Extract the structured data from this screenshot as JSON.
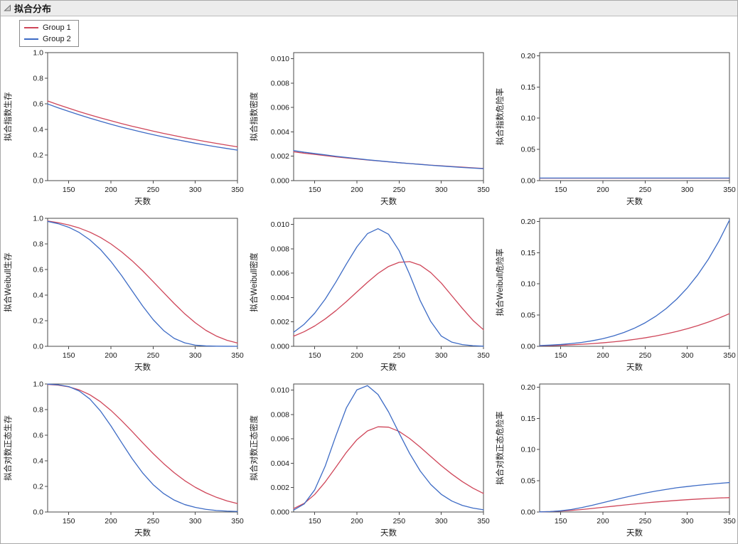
{
  "window": {
    "title": "拟合分布"
  },
  "legend": {
    "items": [
      {
        "label": "Group 1",
        "color": "#CF4659"
      },
      {
        "label": "Group 2",
        "color": "#3D6BC5"
      }
    ]
  },
  "colors": {
    "group1": "#CF4659",
    "group2": "#3D6BC5",
    "frame": "#4a4a4a"
  },
  "chart_data": [
    {
      "type": "line",
      "name": "fitted-exponential-survival",
      "ylabel": "拟合指数生存",
      "xlabel": "天数",
      "xlim": [
        125,
        350
      ],
      "ylim": [
        0,
        1.0
      ],
      "xticks": [
        150,
        200,
        250,
        300,
        350
      ],
      "ytick_values": [
        0,
        0.2,
        0.4,
        0.6,
        0.8,
        1.0
      ],
      "ytick_labels": [
        "0.0",
        "0.2",
        "0.4",
        "0.6",
        "0.8",
        "1.0"
      ],
      "x": [
        125,
        137.5,
        150,
        162.5,
        175,
        187.5,
        200,
        212.5,
        225,
        237.5,
        250,
        262.5,
        275,
        287.5,
        300,
        312.5,
        325,
        337.5,
        350
      ],
      "series": [
        {
          "name": "Group 1",
          "color": "#CF4659",
          "values": [
            0.622,
            0.593,
            0.566,
            0.539,
            0.514,
            0.49,
            0.468,
            0.446,
            0.425,
            0.406,
            0.387,
            0.369,
            0.352,
            0.335,
            0.32,
            0.305,
            0.291,
            0.277,
            0.264
          ]
        },
        {
          "name": "Group 2",
          "color": "#3D6BC5",
          "values": [
            0.599,
            0.569,
            0.541,
            0.514,
            0.488,
            0.464,
            0.44,
            0.418,
            0.398,
            0.378,
            0.359,
            0.341,
            0.324,
            0.308,
            0.292,
            0.278,
            0.264,
            0.251,
            0.238
          ]
        }
      ]
    },
    {
      "type": "line",
      "name": "fitted-exponential-density",
      "ylabel": "拟合指数密度",
      "xlabel": "天数",
      "xlim": [
        125,
        350
      ],
      "ylim": [
        0,
        0.0105
      ],
      "xticks": [
        150,
        200,
        250,
        300,
        350
      ],
      "ytick_values": [
        0,
        0.002,
        0.004,
        0.006,
        0.008,
        0.01
      ],
      "ytick_labels": [
        "0.000",
        "0.002",
        "0.004",
        "0.006",
        "0.008",
        "0.010"
      ],
      "x": [
        125,
        137.5,
        150,
        162.5,
        175,
        187.5,
        200,
        212.5,
        225,
        237.5,
        250,
        262.5,
        275,
        287.5,
        300,
        312.5,
        325,
        337.5,
        350
      ],
      "series": [
        {
          "name": "Group 1",
          "color": "#CF4659",
          "values": [
            0.00236,
            0.00225,
            0.00215,
            0.00205,
            0.00195,
            0.00186,
            0.00178,
            0.00169,
            0.00162,
            0.00154,
            0.00147,
            0.0014,
            0.00134,
            0.00127,
            0.00122,
            0.00116,
            0.00111,
            0.00105,
            0.001
          ]
        },
        {
          "name": "Group 2",
          "color": "#3D6BC5",
          "values": [
            0.00246,
            0.00233,
            0.00222,
            0.00211,
            0.002,
            0.0019,
            0.00181,
            0.00171,
            0.00163,
            0.00155,
            0.00147,
            0.0014,
            0.00133,
            0.00126,
            0.0012,
            0.00114,
            0.00108,
            0.00103,
            0.00098
          ]
        }
      ]
    },
    {
      "type": "line",
      "name": "fitted-exponential-hazard",
      "ylabel": "拟合指数危险率",
      "xlabel": "天数",
      "xlim": [
        125,
        350
      ],
      "ylim": [
        0,
        0.205
      ],
      "xticks": [
        150,
        200,
        250,
        300,
        350
      ],
      "ytick_values": [
        0,
        0.05,
        0.1,
        0.15,
        0.2
      ],
      "ytick_labels": [
        "0.00",
        "0.05",
        "0.10",
        "0.15",
        "0.20"
      ],
      "x": [
        125,
        137.5,
        150,
        162.5,
        175,
        187.5,
        200,
        212.5,
        225,
        237.5,
        250,
        262.5,
        275,
        287.5,
        300,
        312.5,
        325,
        337.5,
        350
      ],
      "series": [
        {
          "name": "Group 1",
          "color": "#CF4659",
          "values": [
            0.0038,
            0.0038,
            0.0038,
            0.0038,
            0.0038,
            0.0038,
            0.0038,
            0.0038,
            0.0038,
            0.0038,
            0.0038,
            0.0038,
            0.0038,
            0.0038,
            0.0038,
            0.0038,
            0.0038,
            0.0038,
            0.0038
          ]
        },
        {
          "name": "Group 2",
          "color": "#3D6BC5",
          "values": [
            0.0041,
            0.0041,
            0.0041,
            0.0041,
            0.0041,
            0.0041,
            0.0041,
            0.0041,
            0.0041,
            0.0041,
            0.0041,
            0.0041,
            0.0041,
            0.0041,
            0.0041,
            0.0041,
            0.0041,
            0.0041,
            0.0041
          ]
        }
      ]
    },
    {
      "type": "line",
      "name": "fitted-weibull-survival",
      "ylabel": "拟合Weibull生存",
      "xlabel": "天数",
      "xlim": [
        125,
        350
      ],
      "ylim": [
        0,
        1.0
      ],
      "xticks": [
        150,
        200,
        250,
        300,
        350
      ],
      "ytick_values": [
        0,
        0.2,
        0.4,
        0.6,
        0.8,
        1.0
      ],
      "ytick_labels": [
        "0.0",
        "0.2",
        "0.4",
        "0.6",
        "0.8",
        "1.0"
      ],
      "x": [
        125,
        137.5,
        150,
        162.5,
        175,
        187.5,
        200,
        212.5,
        225,
        237.5,
        250,
        262.5,
        275,
        287.5,
        300,
        312.5,
        325,
        337.5,
        350
      ],
      "series": [
        {
          "name": "Group 1",
          "color": "#CF4659",
          "values": [
            0.979,
            0.966,
            0.948,
            0.924,
            0.892,
            0.851,
            0.8,
            0.739,
            0.669,
            0.591,
            0.506,
            0.42,
            0.334,
            0.254,
            0.184,
            0.125,
            0.08,
            0.047,
            0.026
          ]
        },
        {
          "name": "Group 2",
          "color": "#3D6BC5",
          "values": [
            0.976,
            0.958,
            0.93,
            0.889,
            0.832,
            0.757,
            0.663,
            0.554,
            0.435,
            0.316,
            0.209,
            0.123,
            0.062,
            0.027,
            0.009,
            0.003,
            0.001,
            0.0002,
            0.0
          ]
        }
      ]
    },
    {
      "type": "line",
      "name": "fitted-weibull-density",
      "ylabel": "拟合Weibull密度",
      "xlabel": "天数",
      "xlim": [
        125,
        350
      ],
      "ylim": [
        0,
        0.0105
      ],
      "xticks": [
        150,
        200,
        250,
        300,
        350
      ],
      "ytick_values": [
        0,
        0.002,
        0.004,
        0.006,
        0.008,
        0.01
      ],
      "ytick_labels": [
        "0.000",
        "0.002",
        "0.004",
        "0.006",
        "0.008",
        "0.010"
      ],
      "x": [
        125,
        137.5,
        150,
        162.5,
        175,
        187.5,
        200,
        212.5,
        225,
        237.5,
        250,
        262.5,
        275,
        287.5,
        300,
        312.5,
        325,
        337.5,
        350
      ],
      "series": [
        {
          "name": "Group 1",
          "color": "#CF4659",
          "values": [
            0.00083,
            0.0012,
            0.00167,
            0.00225,
            0.00292,
            0.00367,
            0.00446,
            0.00525,
            0.00598,
            0.00655,
            0.00689,
            0.00695,
            0.00666,
            0.00605,
            0.00519,
            0.00415,
            0.00311,
            0.00213,
            0.00136
          ]
        },
        {
          "name": "Group 2",
          "color": "#3D6BC5",
          "values": [
            0.00115,
            0.00181,
            0.00272,
            0.00388,
            0.00526,
            0.00675,
            0.00816,
            0.00924,
            0.00965,
            0.00919,
            0.00785,
            0.0059,
            0.00375,
            0.00204,
            0.00084,
            0.00034,
            0.00014,
            5e-05,
            1e-05
          ]
        }
      ]
    },
    {
      "type": "line",
      "name": "fitted-weibull-hazard",
      "ylabel": "拟合Weibull危险率",
      "xlabel": "天数",
      "xlim": [
        125,
        350
      ],
      "ylim": [
        0,
        0.205
      ],
      "xticks": [
        150,
        200,
        250,
        300,
        350
      ],
      "ytick_values": [
        0,
        0.05,
        0.1,
        0.15,
        0.2
      ],
      "ytick_labels": [
        "0.00",
        "0.05",
        "0.10",
        "0.15",
        "0.20"
      ],
      "x": [
        125,
        137.5,
        150,
        162.5,
        175,
        187.5,
        200,
        212.5,
        225,
        237.5,
        250,
        262.5,
        275,
        287.5,
        300,
        312.5,
        325,
        337.5,
        350
      ],
      "series": [
        {
          "name": "Group 1",
          "color": "#CF4659",
          "values": [
            0.0009,
            0.0012,
            0.0018,
            0.0024,
            0.0033,
            0.0043,
            0.0056,
            0.0071,
            0.0089,
            0.0111,
            0.0136,
            0.0165,
            0.0199,
            0.0238,
            0.0282,
            0.0332,
            0.0389,
            0.0452,
            0.0523
          ]
        },
        {
          "name": "Group 2",
          "color": "#3D6BC5",
          "values": [
            0.0012,
            0.0019,
            0.0029,
            0.0044,
            0.0063,
            0.0089,
            0.0123,
            0.0167,
            0.0222,
            0.0291,
            0.0376,
            0.048,
            0.0605,
            0.0756,
            0.0935,
            0.1147,
            0.1395,
            0.1685,
            0.2021
          ]
        }
      ]
    },
    {
      "type": "line",
      "name": "fitted-lognormal-survival",
      "ylabel": "拟合对数正态生存",
      "xlabel": "天数",
      "xlim": [
        125,
        350
      ],
      "ylim": [
        0,
        1.0
      ],
      "xticks": [
        150,
        200,
        250,
        300,
        350
      ],
      "ytick_values": [
        0,
        0.2,
        0.4,
        0.6,
        0.8,
        1.0
      ],
      "ytick_labels": [
        "0.0",
        "0.2",
        "0.4",
        "0.6",
        "0.8",
        "1.0"
      ],
      "x": [
        125,
        137.5,
        150,
        162.5,
        175,
        187.5,
        200,
        212.5,
        225,
        237.5,
        250,
        262.5,
        275,
        287.5,
        300,
        312.5,
        325,
        337.5,
        350
      ],
      "series": [
        {
          "name": "Group 1",
          "color": "#CF4659",
          "values": [
            0.997,
            0.991,
            0.978,
            0.954,
            0.916,
            0.862,
            0.794,
            0.715,
            0.63,
            0.542,
            0.457,
            0.378,
            0.307,
            0.245,
            0.193,
            0.15,
            0.115,
            0.087,
            0.066
          ]
        },
        {
          "name": "Group 2",
          "color": "#3D6BC5",
          "values": [
            0.999,
            0.994,
            0.98,
            0.945,
            0.883,
            0.79,
            0.673,
            0.544,
            0.418,
            0.306,
            0.214,
            0.144,
            0.093,
            0.058,
            0.036,
            0.021,
            0.012,
            0.007,
            0.004
          ]
        }
      ]
    },
    {
      "type": "line",
      "name": "fitted-lognormal-density",
      "ylabel": "拟合对数正态密度",
      "xlabel": "天数",
      "xlim": [
        125,
        350
      ],
      "ylim": [
        0,
        0.0105
      ],
      "xticks": [
        150,
        200,
        250,
        300,
        350
      ],
      "ytick_values": [
        0,
        0.002,
        0.004,
        0.006,
        0.008,
        0.01
      ],
      "ytick_labels": [
        "0.000",
        "0.002",
        "0.004",
        "0.006",
        "0.008",
        "0.010"
      ],
      "x": [
        125,
        137.5,
        150,
        162.5,
        175,
        187.5,
        200,
        212.5,
        225,
        237.5,
        250,
        262.5,
        275,
        287.5,
        300,
        312.5,
        325,
        337.5,
        350
      ],
      "series": [
        {
          "name": "Group 1",
          "color": "#CF4659",
          "values": [
            0.00028,
            0.00071,
            0.00144,
            0.00247,
            0.00367,
            0.00489,
            0.00593,
            0.00665,
            0.00699,
            0.00696,
            0.00661,
            0.00603,
            0.00532,
            0.00456,
            0.0038,
            0.00311,
            0.00249,
            0.00196,
            0.00152
          ]
        },
        {
          "name": "Group 2",
          "color": "#3D6BC5",
          "values": [
            0.00016,
            0.00066,
            0.00182,
            0.00378,
            0.00624,
            0.00854,
            0.01002,
            0.01037,
            0.00964,
            0.00821,
            0.00648,
            0.0048,
            0.00337,
            0.00226,
            0.00145,
            0.0009,
            0.00054,
            0.00032,
            0.00018
          ]
        }
      ]
    },
    {
      "type": "line",
      "name": "fitted-lognormal-hazard",
      "ylabel": "拟合对数正态危险率",
      "xlabel": "天数",
      "xlim": [
        125,
        350
      ],
      "ylim": [
        0,
        0.205
      ],
      "xticks": [
        150,
        200,
        250,
        300,
        350
      ],
      "ytick_values": [
        0,
        0.05,
        0.1,
        0.15,
        0.2
      ],
      "ytick_labels": [
        "0.00",
        "0.05",
        "0.10",
        "0.15",
        "0.20"
      ],
      "x": [
        125,
        137.5,
        150,
        162.5,
        175,
        187.5,
        200,
        212.5,
        225,
        237.5,
        250,
        262.5,
        275,
        287.5,
        300,
        312.5,
        325,
        337.5,
        350
      ],
      "series": [
        {
          "name": "Group 1",
          "color": "#CF4659",
          "values": [
            0.0003,
            0.0007,
            0.0015,
            0.0026,
            0.004,
            0.0057,
            0.0075,
            0.0093,
            0.0111,
            0.0128,
            0.0145,
            0.016,
            0.0173,
            0.0186,
            0.0197,
            0.0207,
            0.0216,
            0.0225,
            0.023
          ]
        },
        {
          "name": "Group 2",
          "color": "#3D6BC5",
          "values": [
            0.0002,
            0.0007,
            0.0019,
            0.004,
            0.0071,
            0.0108,
            0.0149,
            0.0191,
            0.0231,
            0.0268,
            0.0303,
            0.0334,
            0.0362,
            0.0389,
            0.0408,
            0.0427,
            0.0443,
            0.0458,
            0.0472
          ]
        }
      ]
    }
  ]
}
